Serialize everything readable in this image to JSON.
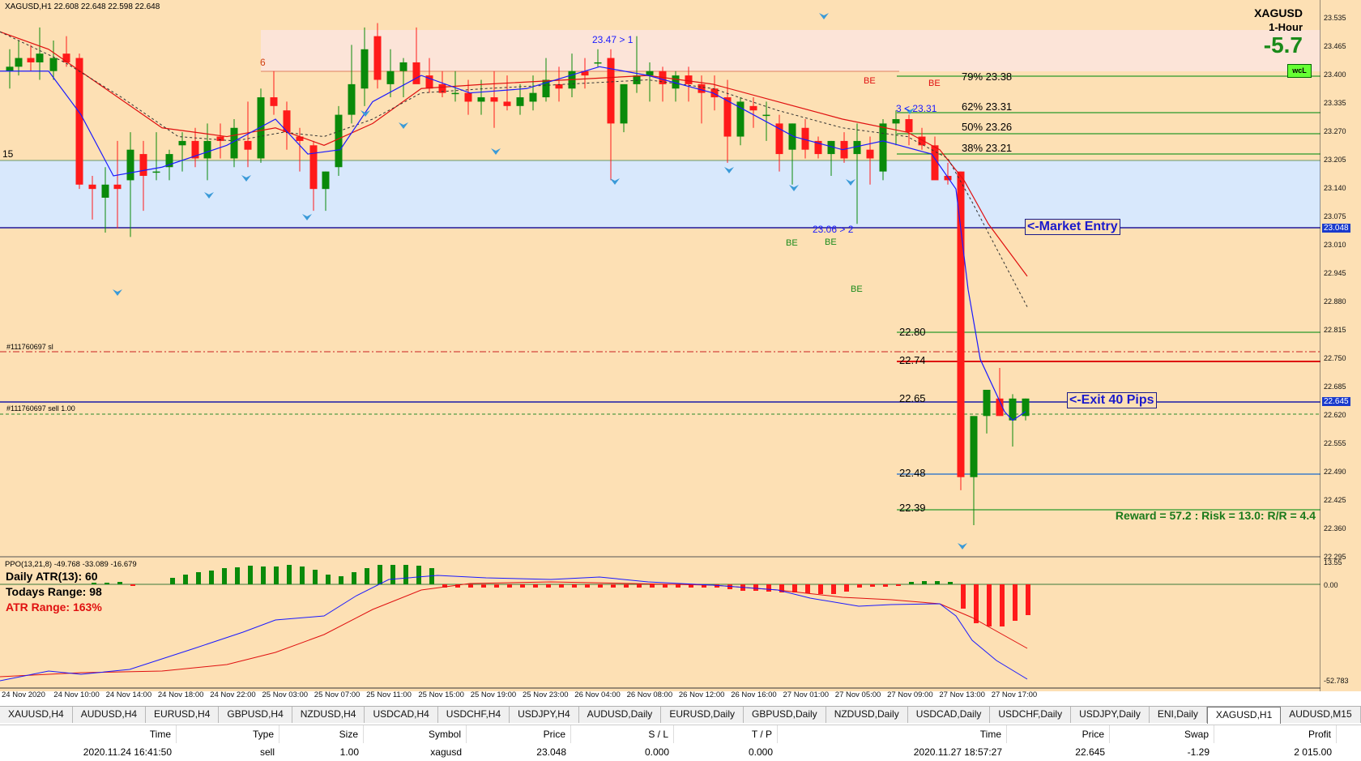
{
  "chart": {
    "header_info": "XAGUSD,H1  22.608 22.648 22.598 22.648",
    "symbol": "XAGUSD",
    "timeframe": "1-Hour",
    "big_value": "-5.7",
    "badge": "wcL",
    "left_marker": "15",
    "annotations": {
      "top_arrow": "23.47 > 1",
      "mid_arrow": "23.06 > 2",
      "upper_arrow": "3 < 23.31",
      "six": "6",
      "be": "BE"
    },
    "fib_levels": [
      "79% 23.38",
      "62% 23.31",
      "50% 23.26",
      "38% 23.21"
    ],
    "levels": [
      "22.80",
      "22.74",
      "22.65",
      "22.48",
      "22.39"
    ],
    "order_sl": "#111760697 sl",
    "order_sell": "#111760697 sell 1.00",
    "market_entry": "<-Market Entry",
    "exit_label": "<-Exit 40 Pips",
    "reward_text": "Reward = 57.2 : Risk = 13.0: R/R = 4.4",
    "entry_price_tag": "23.048",
    "exit_price_tag": "22.645",
    "price_axis": [
      "23.535",
      "23.465",
      "23.400",
      "23.335",
      "23.270",
      "23.205",
      "23.140",
      "23.075",
      "23.010",
      "22.945",
      "22.880",
      "22.815",
      "22.750",
      "22.685",
      "22.620",
      "22.555",
      "22.490",
      "22.425",
      "22.360",
      "22.295"
    ],
    "colors": {
      "bull": "#0a8a0a",
      "bear": "#ff1a1a",
      "ma_fast": "#1a1aff",
      "ma_slow": "#e01010",
      "upper_zone": "#fce4d8",
      "lower_zone": "#d8e8fc",
      "background": "#fde0b4"
    }
  },
  "indicator": {
    "title": "PPO(13,21,8) -49.768 -33.089 -16.679",
    "atr": "Daily ATR(13): 60",
    "todays_range": "Todays Range: 98",
    "atr_range": "ATR Range: 163%",
    "axis": [
      "13.55",
      "0.00",
      "-52.783"
    ]
  },
  "time_axis": [
    "24 Nov 2020",
    "24 Nov 10:00",
    "24 Nov 14:00",
    "24 Nov 18:00",
    "24 Nov 22:00",
    "25 Nov 03:00",
    "25 Nov 07:00",
    "25 Nov 11:00",
    "25 Nov 15:00",
    "25 Nov 19:00",
    "25 Nov 23:00",
    "26 Nov 04:00",
    "26 Nov 08:00",
    "26 Nov 12:00",
    "26 Nov 16:00",
    "27 Nov 01:00",
    "27 Nov 05:00",
    "27 Nov 09:00",
    "27 Nov 13:00",
    "27 Nov 17:00"
  ],
  "tabs": [
    "XAUUSD,H4",
    "AUDUSD,H4",
    "EURUSD,H4",
    "GBPUSD,H4",
    "NZDUSD,H4",
    "USDCAD,H4",
    "USDCHF,H4",
    "USDJPY,H4",
    "AUDUSD,Daily",
    "EURUSD,Daily",
    "GBPUSD,Daily",
    "NZDUSD,Daily",
    "USDCAD,Daily",
    "USDCHF,Daily",
    "USDJPY,Daily",
    "ENI,Daily",
    "XAGUSD,H1",
    "AUDUSD,M15"
  ],
  "active_tab": "XAGUSD,H1",
  "trades": {
    "headers": [
      "Time",
      "Type",
      "Size",
      "Symbol",
      "Price",
      "S / L",
      "T / P",
      "Time",
      "Price",
      "Swap",
      "Profit"
    ],
    "rows": [
      [
        "2020.11.24 16:41:50",
        "sell",
        "1.00",
        "xagusd",
        "23.048",
        "0.000",
        "0.000",
        "2020.11.27 18:57:27",
        "22.645",
        "-1.29",
        "2 015.00"
      ]
    ]
  }
}
